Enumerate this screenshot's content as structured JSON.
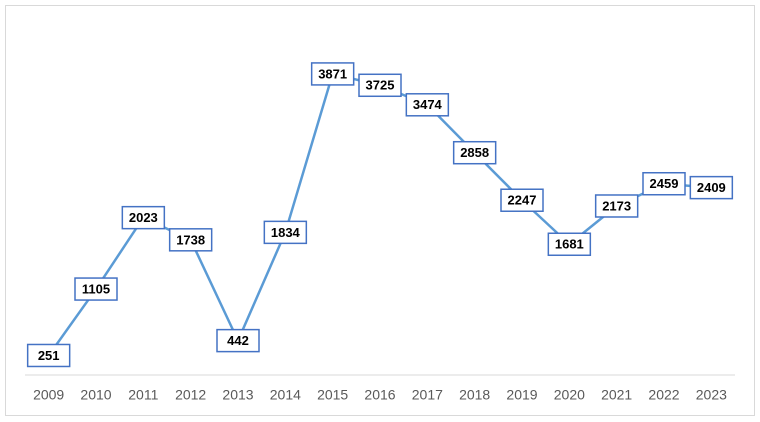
{
  "chart_data": {
    "type": "line",
    "categories": [
      "2009",
      "2010",
      "2011",
      "2012",
      "2013",
      "2014",
      "2015",
      "2016",
      "2017",
      "2018",
      "2019",
      "2020",
      "2021",
      "2022",
      "2023"
    ],
    "values": [
      251,
      1105,
      2023,
      1738,
      442,
      1834,
      3871,
      3725,
      3474,
      2858,
      2247,
      1681,
      2173,
      2459,
      2409
    ],
    "color": "#5b9bd5",
    "ylim": [
      0,
      4500
    ]
  }
}
